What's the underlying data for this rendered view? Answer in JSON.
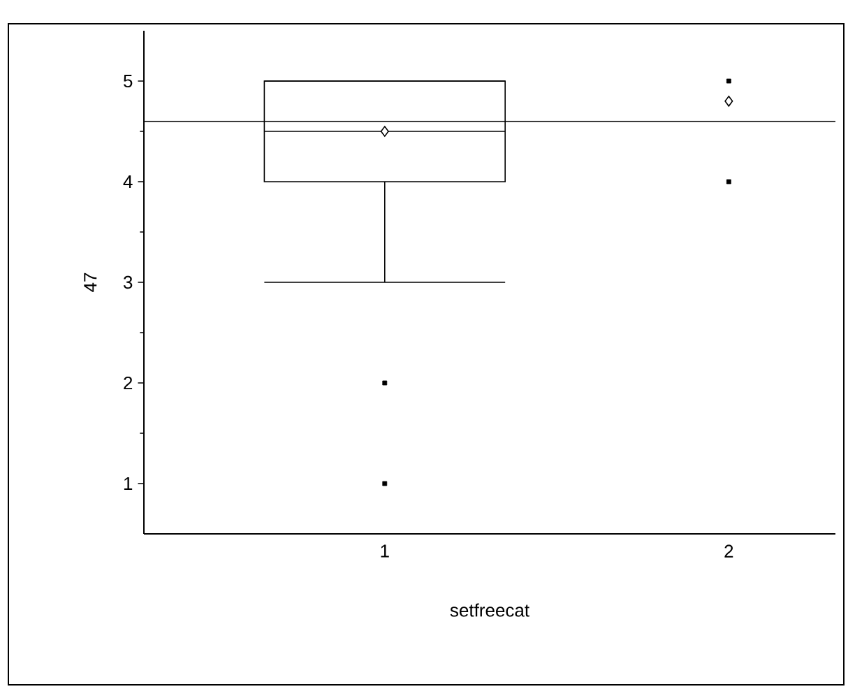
{
  "chart_data": {
    "type": "box",
    "xlabel": "setfreecat",
    "ylabel": "47",
    "categories": [
      "1",
      "2"
    ],
    "boxes": [
      {
        "low": 3,
        "q1": 4,
        "median": 4.5,
        "q3": 5,
        "high": 5,
        "outliers": [
          2,
          1
        ]
      },
      null
    ],
    "series": [
      {
        "type": "scatter",
        "marker": "diamond",
        "x": [
          "1",
          "2"
        ],
        "values": [
          4.5,
          4.8
        ]
      },
      {
        "type": "scatter",
        "marker": "square",
        "x": [
          "2",
          "2"
        ],
        "values": [
          5,
          4
        ]
      }
    ],
    "ylim": [
      0.5,
      5.5
    ],
    "yticks": [
      1,
      2,
      3,
      4,
      5
    ],
    "ref_lines": [
      {
        "axis": "y",
        "value": 4.6
      }
    ]
  }
}
